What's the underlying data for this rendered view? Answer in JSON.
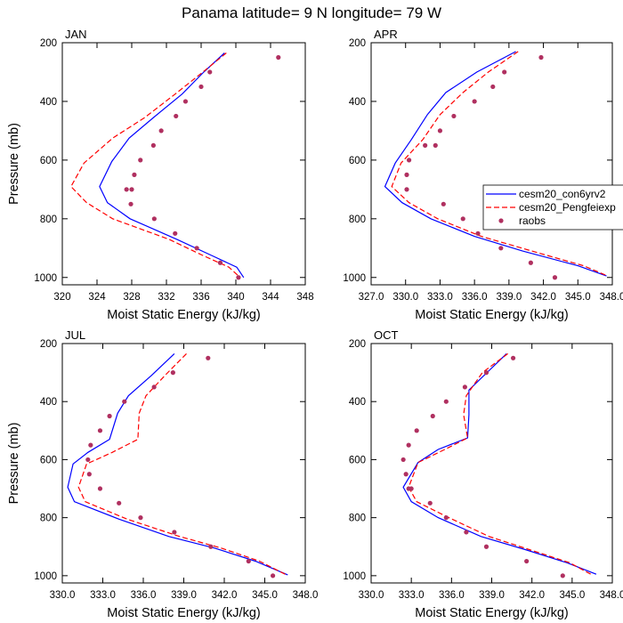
{
  "title": "Panama  latitude= 9 N longitude= 79 W",
  "colors": {
    "con6yrv2": "#0000ff",
    "Pengfeiexp": "#ff0000",
    "raobs": "#b03060"
  },
  "chart_data": [
    {
      "type": "line",
      "panel": "JAN",
      "xlabel": "Moist Static Energy (kJ/kg)",
      "ylabel": "Pressure (mb)",
      "xlim": [
        320,
        348
      ],
      "ylim": [
        200,
        1025
      ],
      "y_inverted": true,
      "xticks": [
        320,
        324,
        328,
        332,
        336,
        340,
        344,
        348
      ],
      "xtick_labels": [
        "320",
        "324",
        "328",
        "332",
        "336",
        "340",
        "344",
        "348"
      ],
      "yticks": [
        200,
        400,
        600,
        800,
        1000
      ],
      "ytick_labels": [
        "200",
        "400",
        "600",
        "800",
        "1000"
      ],
      "series": [
        {
          "name": "cesm20_con6yrv2",
          "style": "solid",
          "color": "#0000ff",
          "x": [
            338.7,
            336.3,
            333.8,
            330.5,
            327.7,
            325.7,
            324.3,
            325.2,
            327.8,
            333.2,
            337.2,
            340.1,
            340.9
          ],
          "y": [
            235,
            300,
            375,
            455,
            525,
            605,
            690,
            745,
            800,
            870,
            925,
            965,
            1000
          ]
        },
        {
          "name": "cesm20_Pengfeiexp",
          "style": "dashed",
          "color": "#ff0000",
          "x": [
            338.9,
            336.2,
            333.0,
            329.5,
            325.8,
            322.5,
            321.0,
            322.8,
            325.8,
            332.3,
            336.2,
            339.2,
            340.5
          ],
          "y": [
            235,
            300,
            375,
            455,
            525,
            610,
            690,
            745,
            800,
            870,
            925,
            965,
            1000
          ]
        },
        {
          "name": "raobs",
          "style": "markers",
          "color": "#b03060",
          "x": [
            344.9,
            337.0,
            336.0,
            334.2,
            333.1,
            331.4,
            330.5,
            329.0,
            328.3,
            328.0,
            327.4,
            327.9,
            330.6,
            333.0,
            335.5,
            338.2,
            340.3
          ],
          "y": [
            250,
            300,
            350,
            400,
            450,
            500,
            550,
            600,
            650,
            700,
            700,
            750,
            800,
            850,
            900,
            950,
            1000
          ]
        }
      ]
    },
    {
      "type": "line",
      "panel": "APR",
      "xlabel": "Moist Static Energy (kJ/kg)",
      "ylabel": "",
      "xlim": [
        327,
        348
      ],
      "ylim": [
        200,
        1025
      ],
      "y_inverted": true,
      "xticks": [
        327,
        330,
        333,
        336,
        339,
        342,
        345,
        348
      ],
      "xtick_labels": [
        "327.0",
        "330.0",
        "333.0",
        "336.0",
        "339.0",
        "342.0",
        "345.0",
        "348.0"
      ],
      "yticks": [
        200,
        400,
        600,
        800,
        1000
      ],
      "ytick_labels": [
        "200",
        "400",
        "600",
        "800",
        "1000"
      ],
      "series": [
        {
          "name": "cesm20_con6yrv2",
          "style": "solid",
          "color": "#0000ff",
          "x": [
            339.6,
            336.2,
            333.5,
            331.9,
            330.5,
            329.1,
            328.2,
            329.7,
            332.2,
            336.0,
            340.2,
            345.0,
            347.5
          ],
          "y": [
            230,
            300,
            370,
            445,
            530,
            610,
            690,
            745,
            800,
            860,
            910,
            960,
            995
          ]
        },
        {
          "name": "cesm20_Pengfeiexp",
          "style": "dashed",
          "color": "#ff0000",
          "x": [
            339.8,
            337.2,
            335.0,
            333.0,
            331.5,
            329.6,
            328.8,
            330.3,
            332.8,
            336.6,
            341.0,
            345.5,
            347.6
          ],
          "y": [
            230,
            300,
            370,
            445,
            530,
            610,
            690,
            745,
            800,
            860,
            910,
            960,
            995
          ]
        },
        {
          "name": "raobs",
          "style": "markers",
          "color": "#b03060",
          "x": [
            341.8,
            338.6,
            337.6,
            336.0,
            334.2,
            333.0,
            331.7,
            332.6,
            330.3,
            330.1,
            330.1,
            333.3,
            335.0,
            336.3,
            338.3,
            340.9,
            343.0
          ],
          "y": [
            250,
            300,
            350,
            400,
            450,
            500,
            550,
            550,
            600,
            650,
            700,
            750,
            800,
            850,
            900,
            950,
            1000
          ]
        }
      ]
    },
    {
      "type": "line",
      "panel": "JUL",
      "xlabel": "Moist Static Energy (kJ/kg)",
      "ylabel": "Pressure (mb)",
      "xlim": [
        330,
        348
      ],
      "ylim": [
        200,
        1025
      ],
      "y_inverted": true,
      "xticks": [
        330,
        333,
        336,
        339,
        342,
        345,
        348
      ],
      "xtick_labels": [
        "330.0",
        "333.0",
        "336.0",
        "339.0",
        "342.0",
        "345.0",
        "348.0"
      ],
      "yticks": [
        200,
        400,
        600,
        800,
        1000
      ],
      "ytick_labels": [
        "200",
        "400",
        "600",
        "800",
        "1000"
      ],
      "series": [
        {
          "name": "cesm20_con6yrv2",
          "style": "solid",
          "color": "#0000ff",
          "x": [
            338.3,
            336.6,
            334.9,
            334.1,
            333.5,
            331.9,
            330.8,
            330.4,
            330.9,
            334.2,
            337.9,
            341.3,
            344.3,
            346.7
          ],
          "y": [
            235,
            310,
            380,
            440,
            530,
            575,
            615,
            695,
            745,
            805,
            865,
            905,
            950,
            997
          ]
        },
        {
          "name": "cesm20_Pengfeiexp",
          "style": "dashed",
          "color": "#ff0000",
          "x": [
            339.2,
            337.6,
            336.2,
            335.7,
            335.6,
            333.7,
            331.8,
            331.2,
            331.7,
            334.8,
            338.7,
            341.8,
            344.6,
            346.6
          ],
          "y": [
            235,
            310,
            380,
            440,
            530,
            575,
            615,
            695,
            745,
            805,
            865,
            905,
            950,
            997
          ]
        },
        {
          "name": "raobs",
          "style": "markers",
          "color": "#b03060",
          "x": [
            340.8,
            338.2,
            336.8,
            334.6,
            333.5,
            332.8,
            332.1,
            331.9,
            332.0,
            332.8,
            334.2,
            335.8,
            338.3,
            341.0,
            343.8,
            345.6
          ],
          "y": [
            250,
            300,
            350,
            400,
            450,
            500,
            550,
            600,
            650,
            700,
            750,
            800,
            850,
            900,
            950,
            1000
          ]
        }
      ]
    },
    {
      "type": "line",
      "panel": "OCT",
      "xlabel": "Moist Static Energy (kJ/kg)",
      "ylabel": "",
      "xlim": [
        330,
        348
      ],
      "ylim": [
        200,
        1025
      ],
      "y_inverted": true,
      "xticks": [
        330,
        333,
        336,
        339,
        342,
        345,
        348
      ],
      "xtick_labels": [
        "330.0",
        "333.0",
        "336.0",
        "339.0",
        "342.0",
        "345.0",
        "348.0"
      ],
      "yticks": [
        200,
        400,
        600,
        800,
        1000
      ],
      "ytick_labels": [
        "200",
        "400",
        "600",
        "800",
        "1000"
      ],
      "series": [
        {
          "name": "cesm20_con6yrv2",
          "style": "solid",
          "color": "#0000ff",
          "x": [
            340.1,
            337.3,
            337.3,
            337.2,
            335.0,
            333.5,
            332.4,
            333.0,
            335.0,
            338.2,
            341.5,
            344.6,
            346.8
          ],
          "y": [
            235,
            360,
            445,
            525,
            565,
            610,
            695,
            745,
            800,
            865,
            910,
            955,
            995
          ]
        },
        {
          "name": "cesm20_Pengfeiexp",
          "style": "dashed",
          "color": "#ff0000",
          "x": [
            340.2,
            338.3,
            337.1,
            336.9,
            337.2,
            335.5,
            333.5,
            332.8,
            333.4,
            335.8,
            338.8,
            341.8,
            344.8,
            346.4
          ],
          "y": [
            235,
            300,
            380,
            445,
            525,
            565,
            610,
            695,
            745,
            800,
            865,
            910,
            955,
            995
          ]
        },
        {
          "name": "raobs",
          "style": "markers",
          "color": "#b03060",
          "x": [
            340.6,
            338.6,
            337.0,
            335.6,
            334.6,
            333.4,
            332.8,
            332.4,
            332.6,
            332.8,
            333.0,
            334.4,
            335.6,
            337.1,
            338.6,
            341.6,
            344.3
          ],
          "y": [
            250,
            300,
            350,
            400,
            450,
            500,
            550,
            600,
            650,
            700,
            700,
            750,
            800,
            850,
            900,
            950,
            1000
          ]
        }
      ]
    }
  ],
  "legend": {
    "entries": [
      {
        "label": "cesm20_con6yrv2",
        "style": "solid",
        "color": "#0000ff"
      },
      {
        "label": "cesm20_Pengfeiexp",
        "style": "dashed",
        "color": "#ff0000"
      },
      {
        "label": "raobs",
        "style": "markers",
        "color": "#b03060"
      }
    ]
  }
}
